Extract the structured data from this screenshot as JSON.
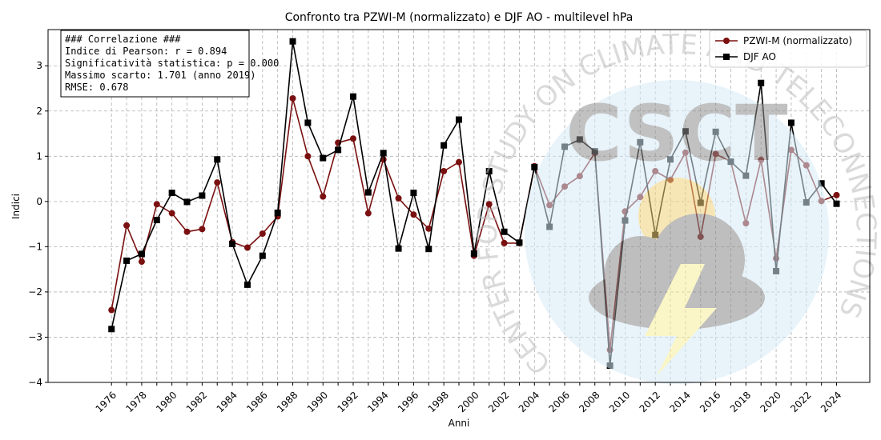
{
  "chart_data": {
    "type": "line",
    "title": "Confronto tra PZWI-M (normalizzato) e DJF AO - multilevel hPa",
    "xlabel": "Anni",
    "ylabel": "Indici",
    "xlim": [
      1971.8,
      2026.2
    ],
    "ylim": [
      -4,
      3.8
    ],
    "x_ticks": [
      1976,
      1978,
      1980,
      1982,
      1984,
      1986,
      1988,
      1990,
      1992,
      1994,
      1996,
      1998,
      2000,
      2002,
      2004,
      2006,
      2008,
      2010,
      2012,
      2014,
      2016,
      2018,
      2020,
      2022,
      2024
    ],
    "y_ticks": [
      -4,
      -3,
      -2,
      -1,
      0,
      1,
      2,
      3
    ],
    "grid": true,
    "legend_position": "top-right",
    "x": [
      1976,
      1977,
      1978,
      1979,
      1980,
      1981,
      1982,
      1983,
      1984,
      1985,
      1986,
      1987,
      1988,
      1989,
      1990,
      1991,
      1992,
      1993,
      1994,
      1995,
      1996,
      1997,
      1998,
      1999,
      2000,
      2001,
      2002,
      2003,
      2004,
      2005,
      2006,
      2007,
      2008,
      2009,
      2010,
      2011,
      2012,
      2013,
      2014,
      2015,
      2016,
      2017,
      2018,
      2019,
      2020,
      2021,
      2022,
      2023,
      2024
    ],
    "series": [
      {
        "name": "PZWI-M (normalizzato)",
        "color": "#7a1010",
        "marker": "circle",
        "values": [
          -2.4,
          -0.53,
          -1.33,
          -0.06,
          -0.26,
          -0.67,
          -0.61,
          0.42,
          -0.9,
          -1.02,
          -0.71,
          -0.33,
          2.28,
          1.0,
          0.11,
          1.3,
          1.39,
          -0.26,
          0.93,
          0.07,
          -0.29,
          -0.6,
          0.67,
          0.87,
          -1.2,
          -0.06,
          -0.92,
          -0.92,
          0.78,
          -0.08,
          0.33,
          0.56,
          1.07,
          -3.28,
          -0.22,
          0.1,
          0.67,
          0.48,
          1.08,
          -0.78,
          1.05,
          0.88,
          -0.48,
          0.92,
          -1.26,
          1.14,
          0.8,
          0.01,
          0.14
        ]
      },
      {
        "name": "DJF AO",
        "color": "#000000",
        "marker": "square",
        "values": [
          -2.82,
          -1.31,
          -1.16,
          -0.41,
          0.19,
          -0.01,
          0.13,
          0.93,
          -0.94,
          -1.84,
          -1.2,
          -0.25,
          3.54,
          1.74,
          0.96,
          1.14,
          2.32,
          0.2,
          1.07,
          -1.04,
          0.19,
          -1.05,
          1.24,
          1.81,
          -1.15,
          0.67,
          -0.67,
          -0.91,
          0.76,
          -0.56,
          1.21,
          1.37,
          1.11,
          -3.63,
          -0.42,
          1.31,
          -0.74,
          0.93,
          1.55,
          -0.03,
          1.54,
          0.88,
          0.57,
          2.62,
          -1.54,
          1.74,
          -0.02,
          0.4,
          -0.05
        ]
      }
    ],
    "annotations": [
      "### Correlazione ###",
      "Indice di Pearson: r = 0.894",
      "Significatività statistica: p = 0.000",
      "Massimo scarto: 1.701 (anno 2019)",
      "RMSE: 0.678"
    ]
  },
  "watermark": {
    "logo_text": "CSCT",
    "ring_text": "CENTER FOR STUDY ON CLIMATE AND TELECONNECTIONS",
    "colors": {
      "disc": "#d6ebf7",
      "letters": "#8f8f8f",
      "cloud": "#8a8a8a",
      "sun": "#f2d27a",
      "bolt": "#f6ef9a"
    }
  },
  "colors": {
    "grid": "#b0b0b0",
    "background": "#ffffff"
  }
}
